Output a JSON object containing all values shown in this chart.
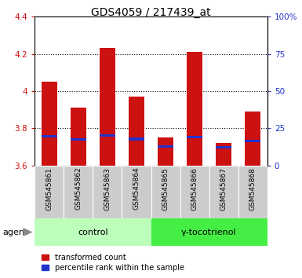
{
  "title": "GDS4059 / 217439_at",
  "samples": [
    "GSM545861",
    "GSM545862",
    "GSM545863",
    "GSM545864",
    "GSM545865",
    "GSM545866",
    "GSM545867",
    "GSM545868"
  ],
  "red_values": [
    4.05,
    3.91,
    4.23,
    3.97,
    3.75,
    4.21,
    3.72,
    3.89
  ],
  "blue_values": [
    3.755,
    3.74,
    3.76,
    3.742,
    3.7,
    3.752,
    3.698,
    3.73
  ],
  "ylim": [
    3.6,
    4.4
  ],
  "yticks_left": [
    3.6,
    3.8,
    4.0,
    4.2,
    4.4
  ],
  "ytick_labels_left": [
    "3.6",
    "3.8",
    "4",
    "4.2",
    "4.4"
  ],
  "yticks_right_pct": [
    0,
    25,
    50,
    75,
    100
  ],
  "ytick_labels_right": [
    "0",
    "25",
    "50",
    "75",
    "100%"
  ],
  "bar_width": 0.55,
  "red_color": "#cc1111",
  "blue_color": "#2233cc",
  "bar_bottom": 3.6,
  "groups": [
    {
      "label": "control",
      "indices": [
        0,
        1,
        2,
        3
      ],
      "color": "#bbffbb"
    },
    {
      "label": "γ-tocotrienol",
      "indices": [
        4,
        5,
        6,
        7
      ],
      "color": "#44ee44"
    }
  ],
  "agent_label": "agent",
  "legend_red": "transformed count",
  "legend_blue": "percentile rank within the sample",
  "title_fontsize": 10,
  "tick_fontsize": 7.5,
  "sample_fontsize": 6.5,
  "group_fontsize": 8,
  "legend_fontsize": 7,
  "bg_plot": "#ffffff",
  "bg_sample": "#cccccc",
  "bg_fig": "#ffffff",
  "grid_yticks": [
    3.8,
    4.0,
    4.2
  ]
}
